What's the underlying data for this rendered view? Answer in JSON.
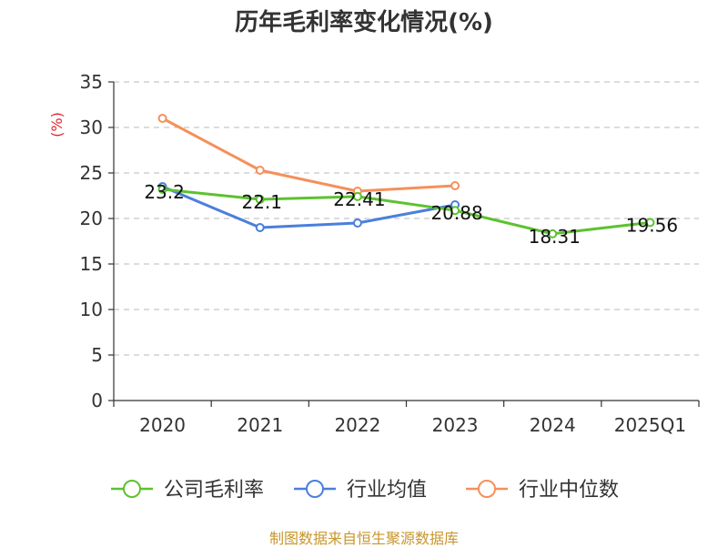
{
  "chart_data": {
    "type": "line",
    "title": "历年毛利率变化情况(%)",
    "ylabel": "(%)",
    "xlabel": "",
    "categories": [
      "2020",
      "2021",
      "2022",
      "2023",
      "2024",
      "2025Q1"
    ],
    "ylim": [
      0,
      35
    ],
    "yticks": [
      0,
      5,
      10,
      15,
      20,
      25,
      30,
      35
    ],
    "grid": true,
    "legend_position": "bottom",
    "series": [
      {
        "name": "公司毛利率",
        "color": "#5cc22f",
        "values": [
          23.2,
          22.1,
          22.41,
          20.88,
          18.31,
          19.56
        ],
        "labels": [
          "23.2",
          "22.1",
          "22.41",
          "20.88",
          "18.31",
          "19.56"
        ]
      },
      {
        "name": "行业均值",
        "color": "#4a7fdc",
        "values": [
          23.5,
          19.0,
          19.5,
          21.5,
          null,
          null
        ]
      },
      {
        "name": "行业中位数",
        "color": "#f5905a",
        "values": [
          31.0,
          25.3,
          23.0,
          23.6,
          null,
          null
        ]
      }
    ]
  },
  "source_text": "制图数据来自恒生聚源数据库"
}
